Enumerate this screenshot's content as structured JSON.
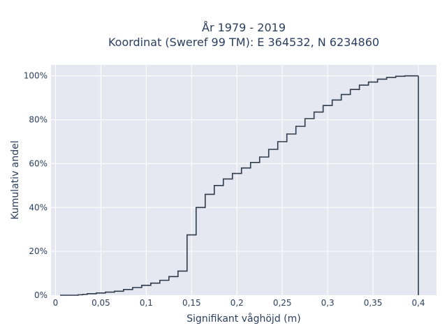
{
  "chart_data": {
    "type": "line",
    "line_shape": "step",
    "title_lines": [
      "År 1979 - 2019",
      "Koordinat (Sweref 99 TM): E 364532, N 6234860"
    ],
    "xlabel": "Signifikant våghöjd (m)",
    "ylabel": "Kumulativ andel",
    "xlim": [
      -0.005,
      0.42
    ],
    "ylim": [
      0,
      1.05
    ],
    "x_ticks": [
      0,
      0.05,
      0.1,
      0.15,
      0.2,
      0.25,
      0.3,
      0.35,
      0.4
    ],
    "x_tick_labels": [
      "0",
      "0,05",
      "0,1",
      "0,15",
      "0,2",
      "0,25",
      "0,3",
      "0,35",
      "0,4"
    ],
    "y_ticks": [
      0,
      0.2,
      0.4,
      0.6,
      0.8,
      1.0
    ],
    "y_tick_labels": [
      "0%",
      "20%",
      "40%",
      "60%",
      "80%",
      "100%"
    ],
    "grid": true,
    "colors": {
      "plot_bg": "#e5e8f0",
      "grid": "#ffffff",
      "line": "#2f3a4a"
    },
    "series": [
      {
        "x": [
          0.005,
          0.015,
          0.025,
          0.03,
          0.035,
          0.045,
          0.055,
          0.065,
          0.07,
          0.075,
          0.08,
          0.085,
          0.09,
          0.095,
          0.1,
          0.105,
          0.11,
          0.115,
          0.12,
          0.125,
          0.13,
          0.135,
          0.14,
          0.145,
          0.15,
          0.155,
          0.16,
          0.165,
          0.17,
          0.175,
          0.18,
          0.185,
          0.19,
          0.195,
          0.2,
          0.205,
          0.21,
          0.215,
          0.22,
          0.225,
          0.23,
          0.235,
          0.24,
          0.245,
          0.25,
          0.255,
          0.26,
          0.265,
          0.27,
          0.275,
          0.28,
          0.285,
          0.29,
          0.295,
          0.3,
          0.305,
          0.31,
          0.315,
          0.32,
          0.325,
          0.33,
          0.335,
          0.34,
          0.345,
          0.35,
          0.355,
          0.36,
          0.365,
          0.37,
          0.375,
          0.38,
          0.385,
          0.39,
          0.395,
          0.4
        ],
        "y": [
          0.0,
          0.0,
          0.002,
          0.004,
          0.007,
          0.01,
          0.014,
          0.018,
          0.018,
          0.026,
          0.026,
          0.035,
          0.035,
          0.045,
          0.045,
          0.055,
          0.055,
          0.068,
          0.068,
          0.085,
          0.085,
          0.11,
          0.11,
          0.275,
          0.275,
          0.4,
          0.4,
          0.46,
          0.46,
          0.5,
          0.5,
          0.53,
          0.53,
          0.555,
          0.555,
          0.58,
          0.58,
          0.605,
          0.605,
          0.63,
          0.63,
          0.665,
          0.665,
          0.7,
          0.7,
          0.735,
          0.735,
          0.77,
          0.77,
          0.805,
          0.805,
          0.835,
          0.835,
          0.865,
          0.865,
          0.89,
          0.89,
          0.915,
          0.915,
          0.938,
          0.938,
          0.958,
          0.958,
          0.972,
          0.972,
          0.985,
          0.985,
          0.993,
          0.993,
          0.998,
          0.998,
          1.0,
          1.0,
          1.0,
          1.0
        ]
      }
    ]
  }
}
